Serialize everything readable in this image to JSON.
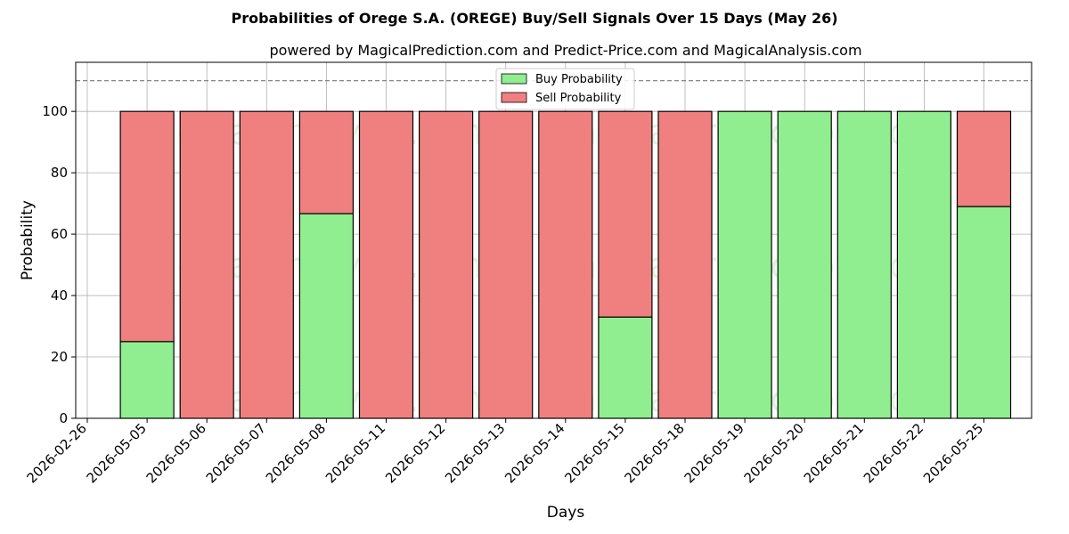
{
  "chart_data": {
    "type": "bar",
    "stacked": true,
    "title": "Probabilities of Orege S.A. (OREGE) Buy/Sell Signals Over 15 Days (May 26)",
    "subtitle": "powered by MagicalPrediction.com and Predict-Price.com and MagicalAnalysis.com",
    "xlabel": "Days",
    "ylabel": "Probability",
    "ylim": [
      0,
      116
    ],
    "yticks": [
      0,
      20,
      40,
      60,
      80,
      100
    ],
    "reference_line": 110,
    "grid": true,
    "legend_position": "top-center",
    "x_tick_labels": [
      "2026-02-26",
      "2026-05-05",
      "2026-05-06",
      "2026-05-07",
      "2026-05-08",
      "2026-05-11",
      "2026-05-12",
      "2026-05-13",
      "2026-05-14",
      "2026-05-15",
      "2026-05-18",
      "2026-05-19",
      "2026-05-20",
      "2026-05-21",
      "2026-05-22",
      "2026-05-25"
    ],
    "categories": [
      "2026-05-05",
      "2026-05-06",
      "2026-05-07",
      "2026-05-08",
      "2026-05-11",
      "2026-05-12",
      "2026-05-13",
      "2026-05-14",
      "2026-05-15",
      "2026-05-18",
      "2026-05-19",
      "2026-05-20",
      "2026-05-21",
      "2026-05-22",
      "2026-05-25"
    ],
    "series": [
      {
        "name": "Buy Probability",
        "color": "#90ee90",
        "values": [
          25,
          0,
          0,
          66.7,
          0,
          0,
          0,
          0,
          33,
          0,
          100,
          100,
          100,
          100,
          69
        ]
      },
      {
        "name": "Sell Probability",
        "color": "#f08080",
        "values": [
          75,
          100,
          100,
          33.3,
          100,
          100,
          100,
          100,
          67,
          100,
          0,
          0,
          0,
          0,
          31
        ]
      }
    ],
    "watermarks": [
      "MagicalAnalysis.com",
      "MagicalPrediction.com"
    ]
  }
}
